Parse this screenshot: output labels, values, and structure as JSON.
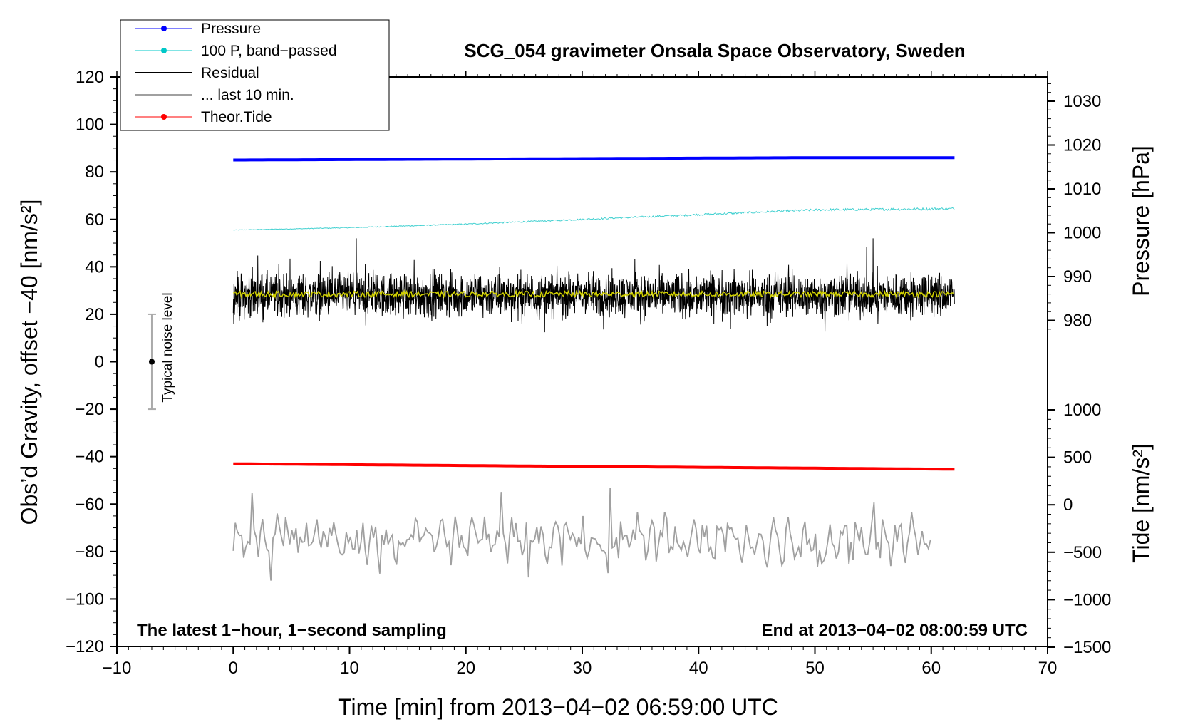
{
  "chart_data": {
    "type": "line",
    "title": "SCG_054 gravimeter Onsala Space Observatory, Sweden",
    "xlabel": "Time [min] from 2013−04−02 06:59:00 UTC",
    "ylabel_left": "Obs’d Gravity, offset −40 [nm/s²]",
    "ylabel_right_top": "Pressure [hPa]",
    "ylabel_right_bottom": "Tide [nm/s²]",
    "xlim": [
      -10,
      70
    ],
    "ylim": [
      -120,
      120
    ],
    "x_ticks": [
      {
        "v": -10,
        "label": "−10"
      },
      {
        "v": 0,
        "label": "0"
      },
      {
        "v": 10,
        "label": "10"
      },
      {
        "v": 20,
        "label": "20"
      },
      {
        "v": 30,
        "label": "30"
      },
      {
        "v": 40,
        "label": "40"
      },
      {
        "v": 50,
        "label": "50"
      },
      {
        "v": 60,
        "label": "60"
      },
      {
        "v": 70,
        "label": "70"
      }
    ],
    "y_ticks": [
      {
        "v": 120,
        "label": "120"
      },
      {
        "v": 100,
        "label": "100"
      },
      {
        "v": 80,
        "label": "80"
      },
      {
        "v": 60,
        "label": "60"
      },
      {
        "v": 40,
        "label": "40"
      },
      {
        "v": 20,
        "label": "20"
      },
      {
        "v": 0,
        "label": "0"
      },
      {
        "v": -20,
        "label": "−20"
      },
      {
        "v": -40,
        "label": "−40"
      },
      {
        "v": -60,
        "label": "−60"
      },
      {
        "v": -80,
        "label": "−80"
      },
      {
        "v": -100,
        "label": "−100"
      },
      {
        "v": -120,
        "label": "−120"
      }
    ],
    "pressure_axis": {
      "ticks": [
        {
          "v": 1030,
          "label": "1030"
        },
        {
          "v": 1020,
          "label": "1020"
        },
        {
          "v": 1010,
          "label": "1010"
        },
        {
          "v": 1000,
          "label": "1000"
        },
        {
          "v": 990,
          "label": "990"
        },
        {
          "v": 980,
          "label": "980"
        }
      ]
    },
    "tide_axis": {
      "ticks": [
        {
          "v": 1000,
          "label": "1000"
        },
        {
          "v": 500,
          "label": "500"
        },
        {
          "v": 0,
          "label": "0"
        },
        {
          "v": -500,
          "label": "−500"
        },
        {
          "v": -1000,
          "label": "−1000"
        },
        {
          "v": -1500,
          "label": "−1500"
        }
      ]
    },
    "legend": [
      {
        "name": "Pressure",
        "color": "#0000ff",
        "marker": true
      },
      {
        "name": "100 P, band−passed",
        "color": "#00c8c8",
        "marker": true
      },
      {
        "name": "Residual",
        "color": "#000000",
        "marker": false
      },
      {
        "name": "... last 10 min.",
        "color": "#a0a0a0",
        "marker": false
      },
      {
        "name": "Theor.Tide",
        "color": "#ff0000",
        "marker": true
      }
    ],
    "series": [
      {
        "name": "Pressure",
        "color": "#0000ff",
        "x": [
          0,
          10,
          20,
          30,
          40,
          50,
          62
        ],
        "y": [
          85.0,
          85.2,
          85.4,
          85.6,
          85.8,
          86.0,
          86.0
        ]
      },
      {
        "name": "100 P, band−passed",
        "color": "#40d0d0",
        "x": [
          0,
          10,
          20,
          30,
          40,
          50,
          62
        ],
        "y": [
          55.5,
          56.5,
          58.0,
          60.0,
          62.0,
          64.0,
          64.5
        ]
      },
      {
        "name": "Residual",
        "color": "#000000",
        "x_range": [
          0,
          62
        ],
        "y_center": 28,
        "y_min": 9,
        "y_max": 52
      },
      {
        "name": "Residual smoothed",
        "color": "#d2d200",
        "x_range": [
          0,
          62
        ],
        "y_center": 28.5
      },
      {
        "name": "Theor.Tide",
        "color": "#ff0000",
        "x": [
          0,
          62
        ],
        "y": [
          -43.0,
          -45.3
        ]
      },
      {
        "name": "... last 10 min.",
        "color": "#a0a0a0",
        "x_range": [
          0,
          60
        ],
        "y_center": -75,
        "y_min": -93,
        "y_max": -51
      }
    ],
    "noise_level": {
      "x": -7,
      "center": 0,
      "half_range": 20,
      "label": "Typical noise level"
    },
    "annotations": {
      "bottom_left": "The latest 1−hour, 1−second sampling",
      "bottom_right": "End at 2013−04−02 08:00:59 UTC"
    }
  }
}
